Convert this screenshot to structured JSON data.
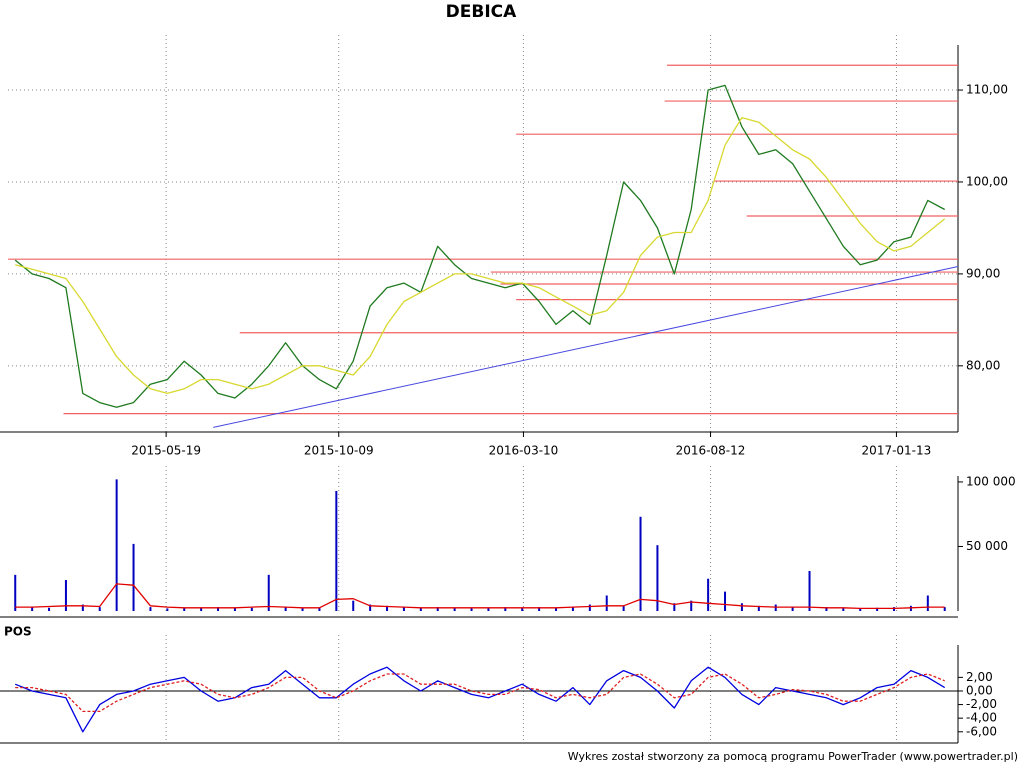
{
  "footer": "Wykres został stworzony za pomocą programu PowerTrader (www.powertrader.pl)",
  "chart_data": [
    {
      "type": "line",
      "title": "DEBICA",
      "x": [
        "2015-01-14",
        "2015-01-28",
        "2015-02-11",
        "2015-02-25",
        "2015-03-11",
        "2015-03-25",
        "2015-04-08",
        "2015-04-22",
        "2015-05-06",
        "2015-05-20",
        "2015-06-03",
        "2015-06-17",
        "2015-07-01",
        "2015-07-15",
        "2015-07-29",
        "2015-08-12",
        "2015-08-26",
        "2015-09-09",
        "2015-09-23",
        "2015-10-07",
        "2015-10-21",
        "2015-11-04",
        "2015-11-18",
        "2015-12-02",
        "2015-12-16",
        "2015-12-30",
        "2016-01-13",
        "2016-01-27",
        "2016-02-10",
        "2016-02-24",
        "2016-03-09",
        "2016-03-23",
        "2016-04-06",
        "2016-04-20",
        "2016-05-04",
        "2016-05-18",
        "2016-06-01",
        "2016-06-15",
        "2016-06-29",
        "2016-07-13",
        "2016-07-27",
        "2016-08-10",
        "2016-08-24",
        "2016-09-07",
        "2016-09-21",
        "2016-10-05",
        "2016-10-19",
        "2016-11-02",
        "2016-11-16",
        "2016-11-30",
        "2016-12-14",
        "2016-12-28",
        "2017-01-11",
        "2017-01-25",
        "2017-02-08",
        "2017-02-22"
      ],
      "xlim": [
        "2015-01-08",
        "2017-03-05"
      ],
      "xticks": [
        "2015-05-19",
        "2015-10-09",
        "2016-03-10",
        "2016-08-12",
        "2017-01-13"
      ],
      "ylim": [
        72.8,
        114.9
      ],
      "yticks": [
        {
          "value": 80,
          "label": "80,00"
        },
        {
          "value": 90,
          "label": "90,00"
        },
        {
          "value": 100,
          "label": "100,00"
        },
        {
          "value": 110,
          "label": "110,00"
        }
      ],
      "grid": true,
      "series": [
        {
          "color": "#1f7a1f",
          "values": [
            91.5,
            90,
            89.5,
            88.5,
            77,
            76,
            75.5,
            76,
            78,
            78.5,
            80.5,
            79,
            77,
            76.5,
            78,
            80,
            82.5,
            80,
            78.5,
            77.5,
            80.5,
            86.5,
            88.5,
            89,
            88,
            93,
            91,
            89.5,
            89,
            88.5,
            89,
            87,
            84.5,
            86,
            84.5,
            92,
            100,
            98,
            95,
            90,
            97,
            110,
            110.5,
            106,
            103,
            103.5,
            102,
            99,
            96,
            93,
            91,
            91.5,
            93.5,
            94,
            98,
            97
          ]
        },
        {
          "color": "#d8d830",
          "values": [
            91,
            90.5,
            90,
            89.5,
            87,
            84,
            81,
            79,
            77.5,
            77,
            77.5,
            78.5,
            78.5,
            78,
            77.5,
            78,
            79,
            80,
            80,
            79.5,
            79,
            81,
            84.5,
            87,
            88,
            89,
            90,
            90,
            89.5,
            89,
            89,
            88.5,
            87.5,
            86.5,
            85.5,
            86,
            88,
            92,
            94,
            94.5,
            94.5,
            98,
            104,
            107,
            106.5,
            105,
            103.5,
            102.5,
            100.5,
            98,
            95.5,
            93.5,
            92.5,
            93,
            94.5,
            96
          ]
        }
      ],
      "levels_color": "#f06060",
      "levels": [
        {
          "value": 112.7,
          "from": "2016-07-07"
        },
        {
          "value": 108.8,
          "from": "2016-07-05"
        },
        {
          "value": 105.2,
          "from": "2016-03-04"
        },
        {
          "value": 100.1,
          "from": "2016-08-15"
        },
        {
          "value": 96.3,
          "from": "2016-09-11"
        },
        {
          "value": 91.6,
          "from": "2015-01-08"
        },
        {
          "value": 90.2,
          "from": "2016-02-12"
        },
        {
          "value": 88.9,
          "from": "2016-02-20"
        },
        {
          "value": 87.2,
          "from": "2016-03-04"
        },
        {
          "value": 83.6,
          "from": "2015-07-19"
        },
        {
          "value": 74.8,
          "from": "2015-02-23"
        }
      ],
      "trend_color": "#4848e0",
      "trend": [
        {
          "date": "2015-06-27",
          "value": 73.3
        },
        {
          "date": "2017-03-05",
          "value": 90.8
        }
      ]
    },
    {
      "type": "bar",
      "ylim": [
        0,
        104600
      ],
      "yticks": [
        {
          "value": 50000,
          "label": "50 000"
        },
        {
          "value": 100000,
          "label": "100 000"
        }
      ],
      "series": [
        {
          "style": "bar",
          "color": "#0000c0",
          "values": [
            28000,
            3000,
            2500,
            24000,
            5000,
            3000,
            102000,
            52000,
            3000,
            2000,
            2500,
            2000,
            3000,
            2000,
            2500,
            28000,
            3000,
            2000,
            2500,
            93000,
            8000,
            5000,
            4000,
            3000,
            2500,
            3000,
            2000,
            2500,
            2000,
            3000,
            2000,
            3000,
            2500,
            3000,
            5000,
            12000,
            4000,
            73000,
            51000,
            6000,
            8000,
            25000,
            15000,
            6000,
            4000,
            5000,
            3000,
            31000,
            3000,
            2500,
            2000,
            2500,
            3000,
            4000,
            12000,
            3000
          ]
        },
        {
          "style": "line",
          "color": "#e00000",
          "values": [
            3000,
            3000,
            3500,
            4000,
            4000,
            3500,
            21000,
            20000,
            4000,
            3000,
            2500,
            2500,
            2500,
            2500,
            3000,
            3500,
            3000,
            2500,
            2500,
            9000,
            9500,
            4000,
            3500,
            3000,
            2500,
            2500,
            2500,
            2500,
            2500,
            2500,
            2500,
            2500,
            2500,
            3000,
            3500,
            4000,
            4000,
            9000,
            8000,
            5000,
            7000,
            6000,
            5000,
            4000,
            3500,
            3000,
            3000,
            3000,
            2500,
            2500,
            2000,
            2000,
            2000,
            2500,
            3000,
            3000
          ]
        }
      ]
    },
    {
      "type": "line",
      "title": "POS",
      "ylim": [
        -7.65,
        6.76
      ],
      "yticks": [
        {
          "value": -6,
          "label": "-6,00"
        },
        {
          "value": -4,
          "label": "-4,00"
        },
        {
          "value": -2,
          "label": "-2,00"
        },
        {
          "value": 0,
          "label": "0,00"
        },
        {
          "value": 2,
          "label": "2,00"
        }
      ],
      "series": [
        {
          "color": "#0000e0",
          "values": [
            1,
            0,
            -0.5,
            -1,
            -6,
            -2,
            -0.5,
            0,
            1,
            1.5,
            2,
            0,
            -1.5,
            -1,
            0.5,
            1,
            3,
            1,
            -1,
            -1,
            1,
            2.5,
            3.5,
            1.5,
            0,
            1.5,
            0.5,
            -0.5,
            -1,
            0,
            1,
            -0.5,
            -1.5,
            0.5,
            -2,
            1.5,
            3,
            2,
            0,
            -2.5,
            1.5,
            3.5,
            2,
            -0.5,
            -2,
            0.5,
            0,
            -0.5,
            -1,
            -2,
            -1,
            0.5,
            1,
            3,
            2,
            0.5
          ]
        },
        {
          "color": "#e02020",
          "dash": true,
          "values": [
            0.5,
            0.5,
            0,
            -0.5,
            -3,
            -3,
            -1.5,
            -0.5,
            0.5,
            1,
            1.5,
            1,
            -0.5,
            -1,
            -0.5,
            0.5,
            2,
            2,
            0,
            -1,
            0,
            1.5,
            2.5,
            2.5,
            1,
            1,
            1,
            0,
            -0.5,
            -0.5,
            0.5,
            0.2,
            -1,
            -0.5,
            -1,
            -0.5,
            2,
            2.5,
            1,
            -1,
            -0.5,
            2,
            2.5,
            1,
            -1,
            -0.5,
            0.2,
            0,
            -0.5,
            -1.5,
            -1.5,
            -0.5,
            0.5,
            2,
            2.5,
            1.5
          ]
        }
      ]
    }
  ]
}
